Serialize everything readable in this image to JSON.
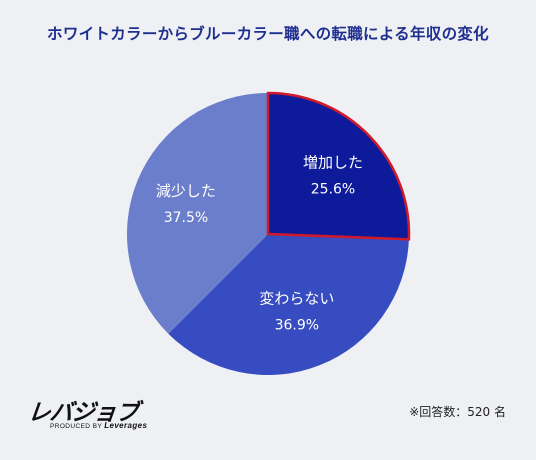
{
  "title": "ホワイトカラーからブルーカラー職への転職による年収の変化",
  "chart_data": {
    "type": "pie",
    "title": "ホワイトカラーからブルーカラー職への転職による年収の変化",
    "slices": [
      {
        "label": "増加した",
        "value": 25.6,
        "value_label": "25.6%",
        "color": "#0d1a9a",
        "highlight": true
      },
      {
        "label": "変わらない",
        "value": 36.9,
        "value_label": "36.9%",
        "color": "#364cc0"
      },
      {
        "label": "減少した",
        "value": 37.5,
        "value_label": "37.5%",
        "color": "#6b7ecb"
      }
    ],
    "start": "12 o'clock",
    "direction": "clockwise",
    "highlight_stroke": "#d01a2a"
  },
  "logo": {
    "main": "レバジョブ",
    "sub_prefix": "PRODUCED BY",
    "sub_brand": "Leverages"
  },
  "note": "※回答数：520 名"
}
